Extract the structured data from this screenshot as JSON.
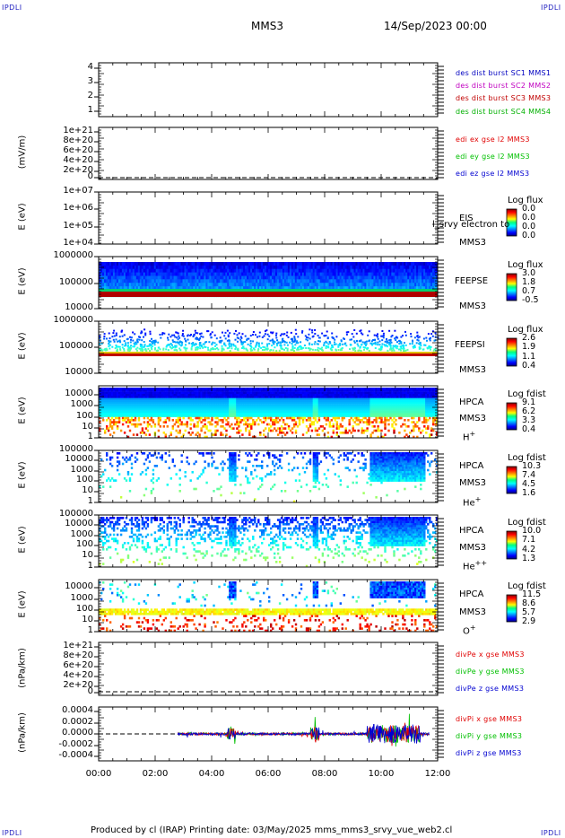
{
  "page": {
    "corner_tl": "IPDLI",
    "corner_tr": "IPDLI",
    "corner_bl": "IPDLI",
    "corner_br": "IPDLI",
    "spacecraft": "MMS3",
    "date": "14/Sep/2023 00:00",
    "footer": "Produced by cl (IRAP)   Printing date: 03/May/2025   mms_mms3_srvy_vue_web2.cl"
  },
  "colors": {
    "mms1": "#0000c0",
    "mms2": "#c000c0",
    "mms3": "#c00000",
    "mms4": "#00b000",
    "x_comp": "#e00000",
    "y_comp": "#00c000",
    "z_comp": "#0000d0"
  },
  "chart_data": [
    {
      "type": "line",
      "panel": "burst",
      "yticks": [
        "4",
        "3",
        "2",
        "1"
      ],
      "legend": [
        {
          "text": "des dist burst SC1 MMS1",
          "color": "mms1"
        },
        {
          "text": "des dist burst SC2 MMS2",
          "color": "mms2"
        },
        {
          "text": "des dist burst SC3 MMS3",
          "color": "mms3"
        },
        {
          "text": "des dist burst SC4 MMS4",
          "color": "mms4"
        }
      ]
    },
    {
      "type": "line",
      "panel": "edi",
      "ylabel": "(mV/m)",
      "yticks": [
        "1e+21",
        "8e+20",
        "6e+20",
        "4e+20",
        "2e+20",
        "0"
      ],
      "legend": [
        {
          "text": "edi ex gse l2 MMS3",
          "color": "x_comp"
        },
        {
          "text": "edi ey gse l2 MMS3",
          "color": "y_comp"
        },
        {
          "text": "edi ez gse l2 MMS3",
          "color": "z_comp"
        }
      ]
    },
    {
      "type": "heatmap",
      "panel": "eis",
      "ylabel": "E (eV)",
      "yticks": [
        "1e+07",
        "1e+06",
        "1e+05",
        "1e+04"
      ],
      "instrument": [
        "EIS",
        "MMS3"
      ],
      "overlay_text": "l_srvy electron to",
      "colorbar": {
        "title": "Log flux",
        "values": [
          "0.0",
          "0.0",
          "0.0",
          "0.0"
        ]
      }
    },
    {
      "type": "heatmap",
      "panel": "feepse",
      "ylabel": "E (eV)",
      "yticks": [
        "1000000",
        "100000",
        "10000"
      ],
      "instrument": [
        "FEEPSE",
        "MMS3"
      ],
      "colorbar": {
        "title": "Log flux",
        "values": [
          "3.0",
          "1.8",
          "0.7",
          "-0.5"
        ]
      }
    },
    {
      "type": "heatmap",
      "panel": "feepsi",
      "ylabel": "E (eV)",
      "yticks": [
        "1000000",
        "100000",
        "10000"
      ],
      "instrument": [
        "FEEPSI",
        "MMS3"
      ],
      "colorbar": {
        "title": "Log flux",
        "values": [
          "2.6",
          "1.9",
          "1.1",
          "0.4"
        ]
      }
    },
    {
      "type": "heatmap",
      "panel": "hpca_h",
      "ylabel": "E (eV)",
      "yticks": [
        "10000",
        "1000",
        "100",
        "10",
        "1"
      ],
      "instrument": [
        "HPCA",
        "MMS3"
      ],
      "species": "H",
      "charge": "+",
      "colorbar": {
        "title": "Log fdist",
        "values": [
          "9.1",
          "6.2",
          "3.3",
          "0.4"
        ]
      }
    },
    {
      "type": "heatmap",
      "panel": "hpca_he",
      "ylabel": "E (eV)",
      "yticks": [
        "100000",
        "10000",
        "1000",
        "100",
        "10",
        "1"
      ],
      "instrument": [
        "HPCA",
        "MMS3"
      ],
      "species": "He",
      "charge": "+",
      "colorbar": {
        "title": "Log fdist",
        "values": [
          "10.3",
          "7.4",
          "4.5",
          "1.6"
        ]
      }
    },
    {
      "type": "heatmap",
      "panel": "hpca_hepp",
      "ylabel": "E (eV)",
      "yticks": [
        "100000",
        "10000",
        "1000",
        "100",
        "10",
        "1"
      ],
      "instrument": [
        "HPCA",
        "MMS3"
      ],
      "species": "He",
      "charge": "++",
      "colorbar": {
        "title": "Log fdist",
        "values": [
          "10.0",
          "7.1",
          "4.2",
          "1.3"
        ]
      }
    },
    {
      "type": "heatmap",
      "panel": "hpca_o",
      "ylabel": "E (eV)",
      "yticks": [
        "10000",
        "1000",
        "100",
        "10",
        "1"
      ],
      "instrument": [
        "HPCA",
        "MMS3"
      ],
      "species": "O",
      "charge": "+",
      "colorbar": {
        "title": "Log fdist",
        "values": [
          "11.5",
          "8.6",
          "5.7",
          "2.9"
        ]
      }
    },
    {
      "type": "line",
      "panel": "divpe",
      "ylabel": "(nPa/km)",
      "yticks": [
        "1e+21",
        "8e+20",
        "6e+20",
        "4e+20",
        "2e+20",
        "0"
      ],
      "legend": [
        {
          "text": "divPe x gse MMS3",
          "color": "x_comp"
        },
        {
          "text": "divPe y gse MMS3",
          "color": "y_comp"
        },
        {
          "text": "divPe z gse MMS3",
          "color": "z_comp"
        }
      ]
    },
    {
      "type": "line",
      "panel": "divpi",
      "ylabel": "(nPa/km)",
      "yticks": [
        "0.0004",
        "0.0002",
        "0.0000",
        "-0.0002",
        "-0.0004"
      ],
      "xticks": [
        "00:00",
        "02:00",
        "04:00",
        "06:00",
        "08:00",
        "10:00",
        "12:00"
      ],
      "data_start_hour": 2.8,
      "data_end_hour": 11.7,
      "legend": [
        {
          "text": "divPi x gse MMS3",
          "color": "x_comp"
        },
        {
          "text": "divPi y gse MMS3",
          "color": "y_comp"
        },
        {
          "text": "divPi z gse MMS3",
          "color": "z_comp"
        }
      ]
    }
  ]
}
